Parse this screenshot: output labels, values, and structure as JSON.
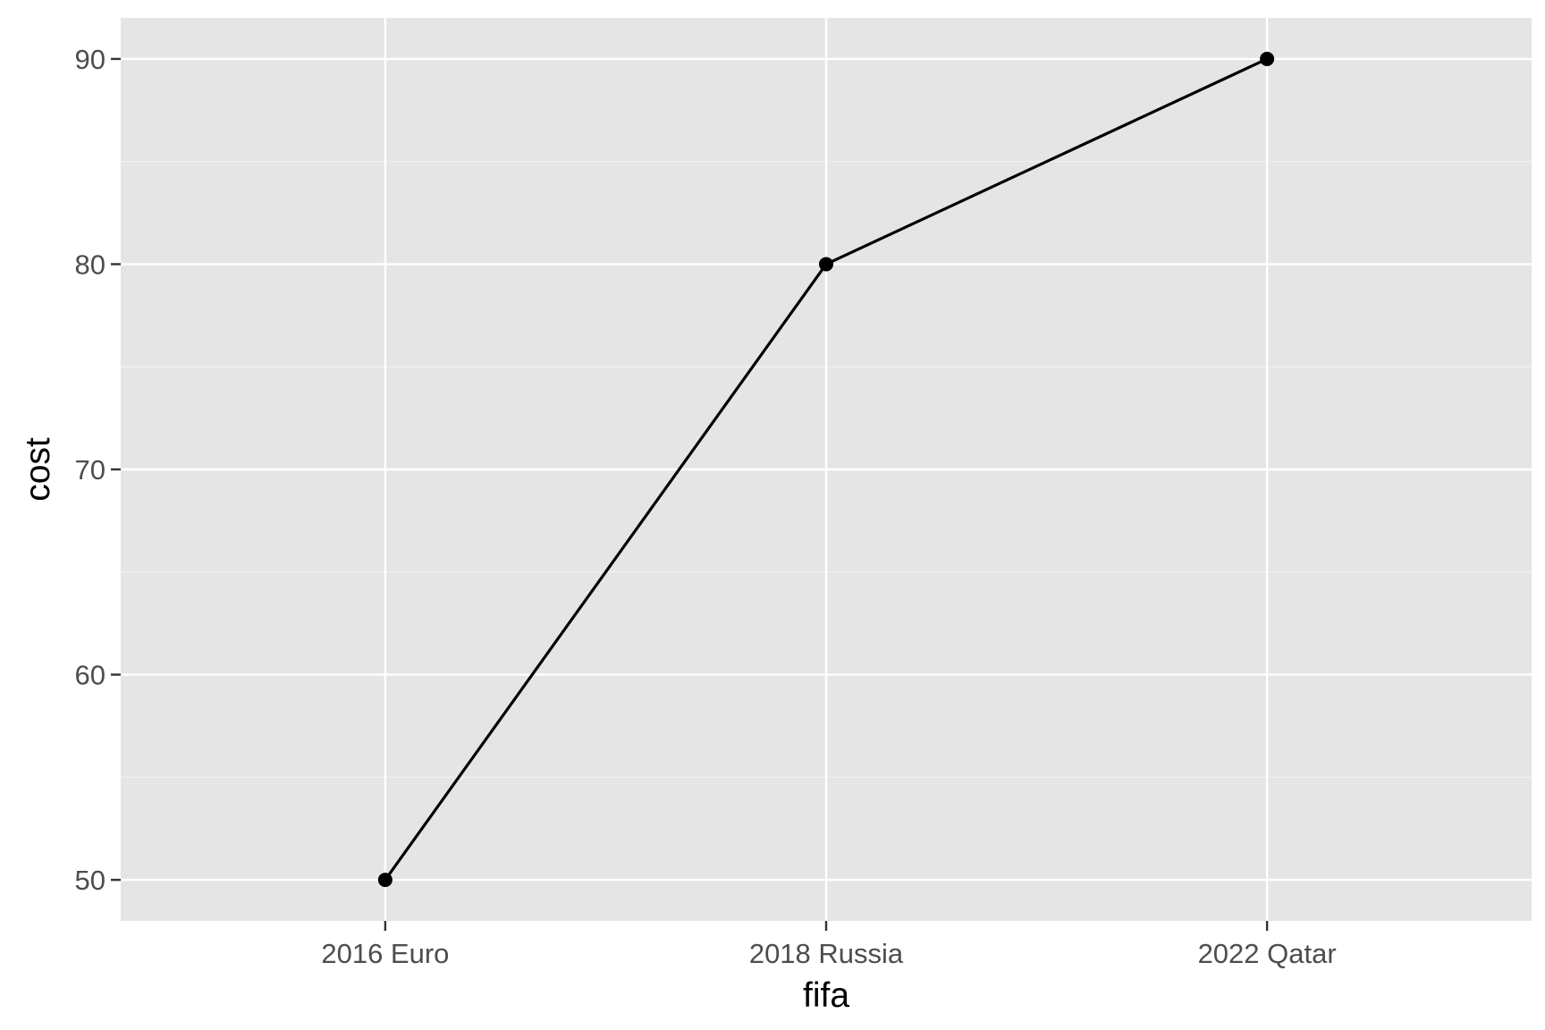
{
  "colors": {
    "panel_background": "#e5e5e5",
    "grid_major": "#ffffff",
    "grid_minor": "#f2f2f2",
    "line": "#000000",
    "point": "#000000",
    "tick_mark": "#333333",
    "tick_label": "#4d4d4d"
  },
  "chart_data": {
    "type": "line",
    "title": "",
    "xlabel": "fifa",
    "ylabel": "cost",
    "categories": [
      "2016 Euro",
      "2018 Russia",
      "2022 Qatar"
    ],
    "series": [
      {
        "values": [
          50,
          80,
          90
        ],
        "markers": true
      }
    ],
    "ylim": [
      48,
      92
    ],
    "yticks": [
      50,
      60,
      70,
      80,
      90
    ],
    "ytick_labels": [
      "50",
      "60",
      "70",
      "80",
      "90"
    ],
    "y_minor_ticks": [
      55,
      65,
      75,
      85
    ],
    "grid": true,
    "legend": "none"
  }
}
